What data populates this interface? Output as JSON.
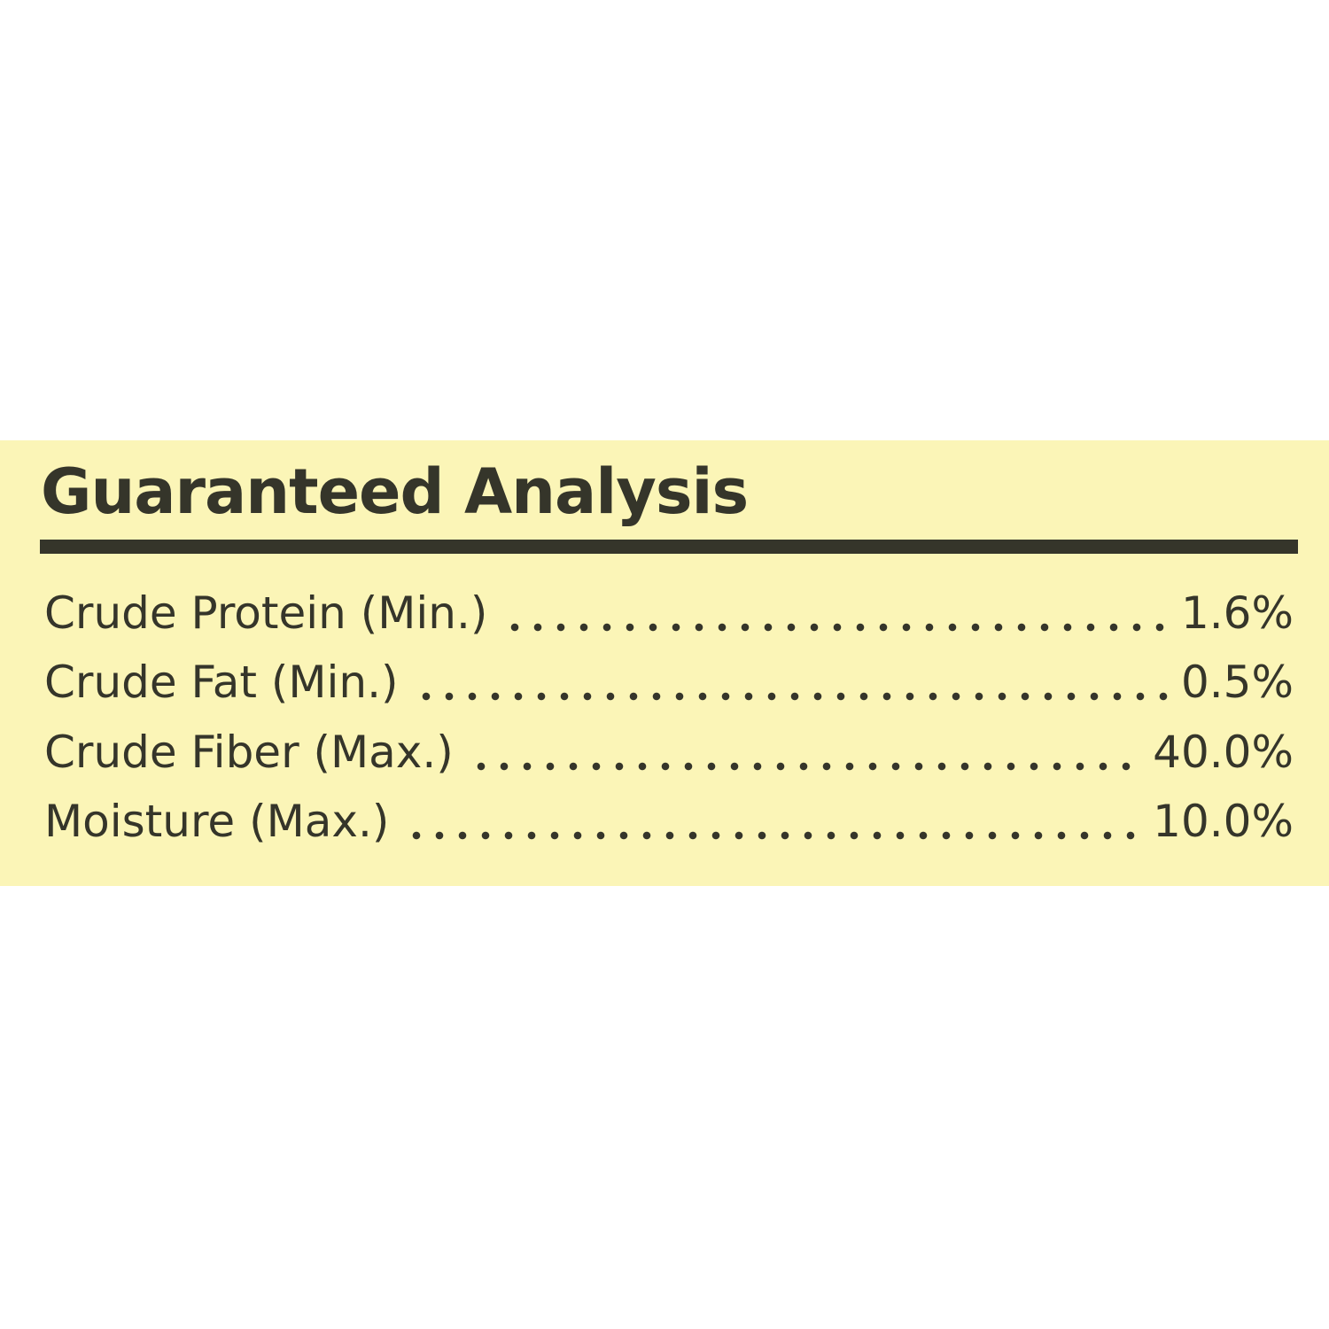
{
  "panel": {
    "title": "Guaranteed Analysis",
    "background_color": "#fbf5b7",
    "text_color": "#35352a",
    "rows": [
      {
        "label": "Crude Protein (Min.)",
        "value": "1.6%"
      },
      {
        "label": "Crude Fat (Min.)",
        "value": "0.5%"
      },
      {
        "label": "Crude Fiber (Max.)",
        "value": "40.0%"
      },
      {
        "label": "Moisture (Max.)",
        "value": "10.0%"
      }
    ]
  }
}
